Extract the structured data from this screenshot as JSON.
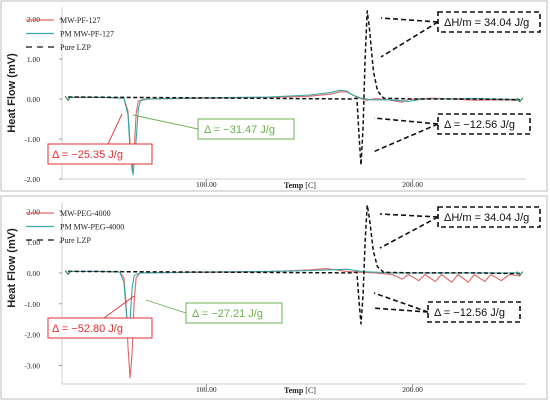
{
  "chart_data": [
    {
      "type": "line",
      "ylabel": "Heat Flow (mV)",
      "xlabel": "Temp",
      "xlabel_unit": "[C]",
      "xlim": [
        30,
        255
      ],
      "ylim": [
        -2.0,
        2.3
      ],
      "x_ticks": [
        100,
        200
      ],
      "x_tick_labels": [
        "100.00",
        "200.00"
      ],
      "y_ticks": [
        2,
        1,
        0,
        -1,
        -2
      ],
      "y_tick_labels": [
        "2.00",
        "1.00",
        "0.00",
        "-1.00",
        "-2.00"
      ],
      "legend_position": "top-left",
      "series": [
        {
          "name": "MW-PF-127",
          "color": "#e06666",
          "style": "solid",
          "points": [
            [
              33,
              0.04
            ],
            [
              50,
              0.04
            ],
            [
              60,
              0.02
            ],
            [
              62,
              -0.3
            ],
            [
              63,
              -1.1
            ],
            [
              64,
              -1.8
            ],
            [
              65,
              -1.25
            ],
            [
              66,
              -0.35
            ],
            [
              67,
              -0.05
            ],
            [
              70,
              0.0
            ],
            [
              100,
              0.02
            ],
            [
              130,
              0.04
            ],
            [
              150,
              0.07
            ],
            [
              160,
              0.12
            ],
            [
              165,
              0.18
            ],
            [
              168,
              0.18
            ],
            [
              171,
              0.1
            ],
            [
              174,
              0.02
            ],
            [
              178,
              -0.03
            ],
            [
              182,
              0.01
            ],
            [
              188,
              -0.02
            ],
            [
              195,
              -0.08
            ],
            [
              198,
              -0.01
            ],
            [
              210,
              0.02
            ],
            [
              230,
              -0.03
            ],
            [
              245,
              -0.02
            ],
            [
              252,
              -0.04
            ]
          ]
        },
        {
          "name": "PM MW-PF-127",
          "color": "#3aa8a8",
          "style": "solid",
          "points": [
            [
              33,
              0.05
            ],
            [
              50,
              0.04
            ],
            [
              60,
              0.02
            ],
            [
              62,
              -0.4
            ],
            [
              63,
              -1.3
            ],
            [
              64.5,
              -1.9
            ],
            [
              66,
              -1.0
            ],
            [
              67,
              -0.25
            ],
            [
              68,
              -0.04
            ],
            [
              72,
              0.0
            ],
            [
              100,
              0.03
            ],
            [
              130,
              0.05
            ],
            [
              150,
              0.1
            ],
            [
              160,
              0.16
            ],
            [
              165,
              0.22
            ],
            [
              168,
              0.2
            ],
            [
              171,
              0.1
            ],
            [
              175,
              0.02
            ],
            [
              180,
              -0.02
            ],
            [
              190,
              -0.02
            ],
            [
              198,
              -0.06
            ],
            [
              205,
              0.0
            ],
            [
              230,
              0.01
            ],
            [
              252,
              -0.01
            ]
          ]
        },
        {
          "name": "Pure LZP",
          "color": "#111111",
          "style": "dashed",
          "points": [
            [
              33,
              0.05
            ],
            [
              60,
              0.04
            ],
            [
              120,
              0.02
            ],
            [
              170,
              0.0
            ],
            [
              173,
              0.02
            ],
            [
              174,
              -0.9
            ],
            [
              175,
              -1.65
            ],
            [
              176,
              -0.7
            ],
            [
              177,
              1.0
            ],
            [
              178,
              2.2
            ],
            [
              179,
              1.8
            ],
            [
              181,
              0.7
            ],
            [
              183,
              0.2
            ],
            [
              186,
              0.02
            ],
            [
              200,
              0.0
            ],
            [
              230,
              0.0
            ],
            [
              252,
              -0.02
            ]
          ]
        }
      ],
      "annotations": [
        {
          "text": "ΔH/m = 34.04 J/g",
          "color": "#111111"
        },
        {
          "text": "Δ = −12.56 J/g",
          "color": "#111111"
        },
        {
          "text": "Δ = −25.35 J/g",
          "color": "#e03030"
        },
        {
          "text": "Δ = −31.47 J/g",
          "color": "#6ab04c"
        }
      ]
    },
    {
      "type": "line",
      "ylabel": "Heat Flow (mV)",
      "xlabel": "Temp",
      "xlabel_unit": "[C]",
      "xlim": [
        30,
        255
      ],
      "ylim": [
        -3.6,
        2.3
      ],
      "x_ticks": [
        100,
        200
      ],
      "x_tick_labels": [
        "100.00",
        "200.00"
      ],
      "y_ticks": [
        2,
        1,
        0,
        -1,
        -2,
        -3
      ],
      "y_tick_labels": [
        "2.00",
        "1.00",
        "0.00",
        "-1.00",
        "-2.00",
        "-3.00"
      ],
      "legend_position": "top-left",
      "series": [
        {
          "name": "MW-PEG-4000",
          "color": "#e06666",
          "style": "solid",
          "points": [
            [
              33,
              0.05
            ],
            [
              50,
              0.05
            ],
            [
              58,
              0.03
            ],
            [
              60,
              -0.15
            ],
            [
              61,
              -0.9
            ],
            [
              62,
              -2.4
            ],
            [
              63,
              -3.4
            ],
            [
              64,
              -2.6
            ],
            [
              65,
              -0.9
            ],
            [
              66,
              -0.15
            ],
            [
              68,
              0.0
            ],
            [
              100,
              0.02
            ],
            [
              130,
              0.04
            ],
            [
              150,
              0.1
            ],
            [
              158,
              0.14
            ],
            [
              163,
              0.1
            ],
            [
              168,
              0.05
            ],
            [
              175,
              0.02
            ],
            [
              182,
              0.0
            ],
            [
              190,
              -0.05
            ],
            [
              195,
              -0.2
            ],
            [
              198,
              -0.05
            ],
            [
              203,
              -0.25
            ],
            [
              206,
              -0.05
            ],
            [
              211,
              -0.28
            ],
            [
              214,
              -0.05
            ],
            [
              219,
              -0.3
            ],
            [
              222,
              -0.05
            ],
            [
              227,
              -0.3
            ],
            [
              230,
              -0.05
            ],
            [
              235,
              -0.28
            ],
            [
              238,
              -0.05
            ],
            [
              243,
              -0.25
            ],
            [
              247,
              -0.05
            ],
            [
              252,
              -0.1
            ]
          ]
        },
        {
          "name": "PM MW-PEG-4000",
          "color": "#3aa8a8",
          "style": "solid",
          "points": [
            [
              33,
              0.05
            ],
            [
              50,
              0.05
            ],
            [
              58,
              0.03
            ],
            [
              60,
              -0.3
            ],
            [
              61,
              -1.1
            ],
            [
              62,
              -1.9
            ],
            [
              63,
              -1.5
            ],
            [
              64,
              -0.5
            ],
            [
              65,
              -0.08
            ],
            [
              68,
              0.0
            ],
            [
              100,
              0.03
            ],
            [
              130,
              0.05
            ],
            [
              150,
              0.08
            ],
            [
              160,
              0.1
            ],
            [
              168,
              0.12
            ],
            [
              176,
              0.04
            ],
            [
              190,
              0.0
            ],
            [
              210,
              0.0
            ],
            [
              230,
              0.0
            ],
            [
              252,
              0.0
            ]
          ]
        },
        {
          "name": "Pure LZP",
          "color": "#111111",
          "style": "dashed",
          "points": [
            [
              33,
              0.05
            ],
            [
              60,
              0.04
            ],
            [
              120,
              0.02
            ],
            [
              170,
              0.0
            ],
            [
              173,
              0.02
            ],
            [
              174,
              -0.9
            ],
            [
              175,
              -1.65
            ],
            [
              176,
              -0.7
            ],
            [
              177,
              1.0
            ],
            [
              178,
              2.2
            ],
            [
              179,
              1.8
            ],
            [
              181,
              0.7
            ],
            [
              183,
              0.2
            ],
            [
              186,
              0.02
            ],
            [
              200,
              0.0
            ],
            [
              230,
              0.0
            ],
            [
              252,
              -0.02
            ]
          ]
        }
      ],
      "annotations": [
        {
          "text": "ΔH/m = 34.04 J/g",
          "color": "#111111"
        },
        {
          "text": "Δ = −12.56 J/g",
          "color": "#111111"
        },
        {
          "text": "Δ = −52.80 J/g",
          "color": "#e03030"
        },
        {
          "text": "Δ = −27.21 J/g",
          "color": "#6ab04c"
        }
      ]
    }
  ]
}
